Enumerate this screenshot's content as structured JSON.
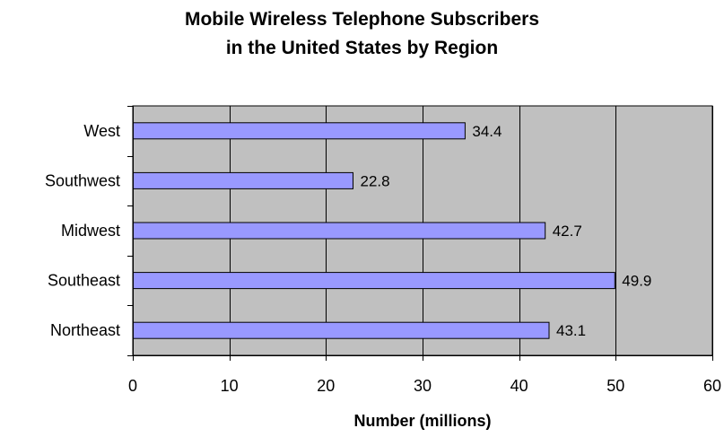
{
  "chart_data": {
    "type": "bar",
    "orientation": "horizontal",
    "title": [
      "Mobile Wireless Telephone Subscribers",
      "in the United States by Region"
    ],
    "xlabel": "Number (millions)",
    "ylabel": "",
    "categories": [
      "West",
      "Southwest",
      "Midwest",
      "Southeast",
      "Northeast"
    ],
    "values": [
      34.4,
      22.8,
      42.7,
      49.9,
      43.1
    ],
    "value_labels": [
      "34.4",
      "22.8",
      "42.7",
      "49.9",
      "43.1"
    ],
    "xlim": [
      0,
      60
    ],
    "xticks": [
      "0",
      "10",
      "20",
      "30",
      "40",
      "50",
      "60"
    ],
    "grid": true,
    "legend": "none",
    "colors": {
      "bar": "#9999ff",
      "bar_outline": "#000000",
      "plot_background": "#c0c0c0",
      "gridline": "#000000"
    }
  }
}
